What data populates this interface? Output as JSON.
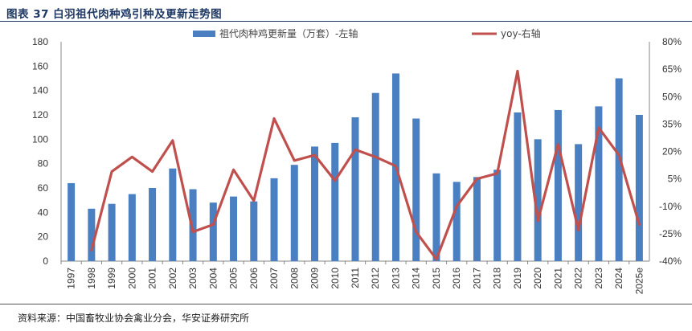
{
  "header": {
    "title": "图表 37 白羽祖代肉种鸡引种及更新走势图"
  },
  "footer": {
    "source": "资料来源：中国畜牧业协会禽业分会，华安证券研究所"
  },
  "colors": {
    "bar": "#4a7fc1",
    "line": "#c0504d",
    "axis": "#888888",
    "title": "#1f3864"
  },
  "chart_data": {
    "type": "bar+line",
    "title": "",
    "categories": [
      "1997",
      "1998",
      "1999",
      "2000",
      "2001",
      "2002",
      "2003",
      "2004",
      "2005",
      "2006",
      "2007",
      "2008",
      "2009",
      "2010",
      "2011",
      "2012",
      "2013",
      "2014",
      "2015",
      "2016",
      "2017",
      "2018",
      "2019",
      "2020",
      "2021",
      "2022",
      "2023",
      "2024",
      "2025e"
    ],
    "series": [
      {
        "name": "祖代肉种鸡更新量（万套）-左轴",
        "type": "bar",
        "axis": "left",
        "values": [
          64,
          43,
          47,
          55,
          60,
          76,
          59,
          48,
          53,
          49,
          68,
          79,
          94,
          97,
          118,
          138,
          154,
          117,
          72,
          65,
          69,
          75,
          122,
          100,
          124,
          96,
          127,
          150,
          120
        ]
      },
      {
        "name": "yoy-右轴",
        "type": "line",
        "axis": "right",
        "values": [
          null,
          -34,
          9,
          17,
          9,
          26,
          -24,
          -20,
          10,
          -7,
          38,
          15,
          18,
          4,
          21,
          17,
          12,
          -24,
          -39,
          -10,
          5,
          8,
          64,
          -18,
          24,
          -23,
          33,
          18,
          -20
        ]
      }
    ],
    "left_axis": {
      "min": 0,
      "max": 180,
      "step": 20,
      "ticks": [
        "0",
        "20",
        "40",
        "60",
        "80",
        "100",
        "120",
        "140",
        "160",
        "180"
      ]
    },
    "right_axis": {
      "min": -40,
      "max": 80,
      "step": 15,
      "ticks": [
        "-40%",
        "-25%",
        "-10%",
        "5%",
        "20%",
        "35%",
        "50%",
        "65%",
        "80%"
      ]
    },
    "legend": {
      "position": "top"
    }
  }
}
